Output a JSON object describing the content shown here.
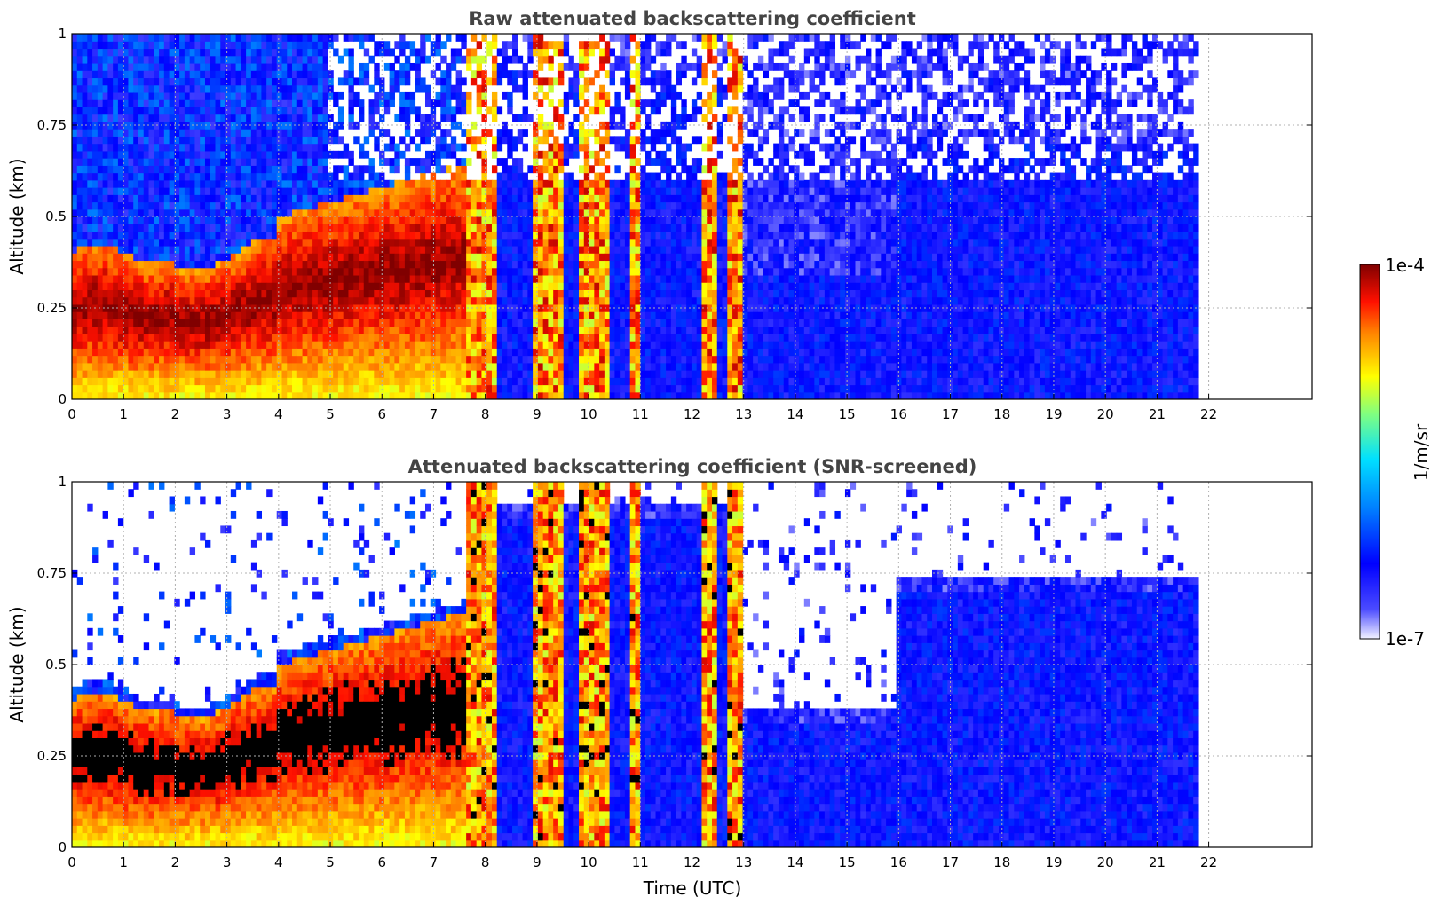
{
  "chart_data": [
    {
      "type": "heatmap",
      "title": "Raw attenuated backscattering coefficient",
      "xlabel": "",
      "ylabel": "Altitude (km)",
      "xlim": [
        0,
        24
      ],
      "ylim": [
        0,
        1
      ],
      "xticks": [
        "0",
        "1",
        "2",
        "3",
        "4",
        "5",
        "6",
        "7",
        "8",
        "9",
        "10",
        "11",
        "12",
        "13",
        "14",
        "15",
        "16",
        "17",
        "18",
        "19",
        "20",
        "21",
        "22"
      ],
      "yticks": [
        "0",
        "0.25",
        "0.5",
        "0.75",
        "1"
      ],
      "ytick_values": [
        0,
        0.25,
        0.5,
        0.75,
        1
      ],
      "grid": true,
      "data_end_time": 21.8,
      "screened": false,
      "colorscale": "jet",
      "color_range": [
        "1e-7",
        "1e-4"
      ]
    },
    {
      "type": "heatmap",
      "title": "Attenuated backscattering coefficient (SNR-screened)",
      "xlabel": "Time (UTC)",
      "ylabel": "Altitude (km)",
      "xlim": [
        0,
        24
      ],
      "ylim": [
        0,
        1
      ],
      "xticks": [
        "0",
        "1",
        "2",
        "3",
        "4",
        "5",
        "6",
        "7",
        "8",
        "9",
        "10",
        "11",
        "12",
        "13",
        "14",
        "15",
        "16",
        "17",
        "18",
        "19",
        "20",
        "21",
        "22"
      ],
      "yticks": [
        "0",
        "0.25",
        "0.5",
        "0.75",
        "1"
      ],
      "ytick_values": [
        0,
        0.25,
        0.5,
        0.75,
        1
      ],
      "grid": true,
      "data_end_time": 21.8,
      "screened": true,
      "colorscale": "jet",
      "color_range": [
        "1e-7",
        "1e-4"
      ]
    }
  ],
  "colorbar": {
    "label": "1/m/sr",
    "max_label": "1e-4",
    "min_label": "1e-7",
    "colors": [
      "#f2f2ff",
      "#0000ff",
      "#00c8ff",
      "#ffff00",
      "#ff6000",
      "#800000"
    ]
  }
}
